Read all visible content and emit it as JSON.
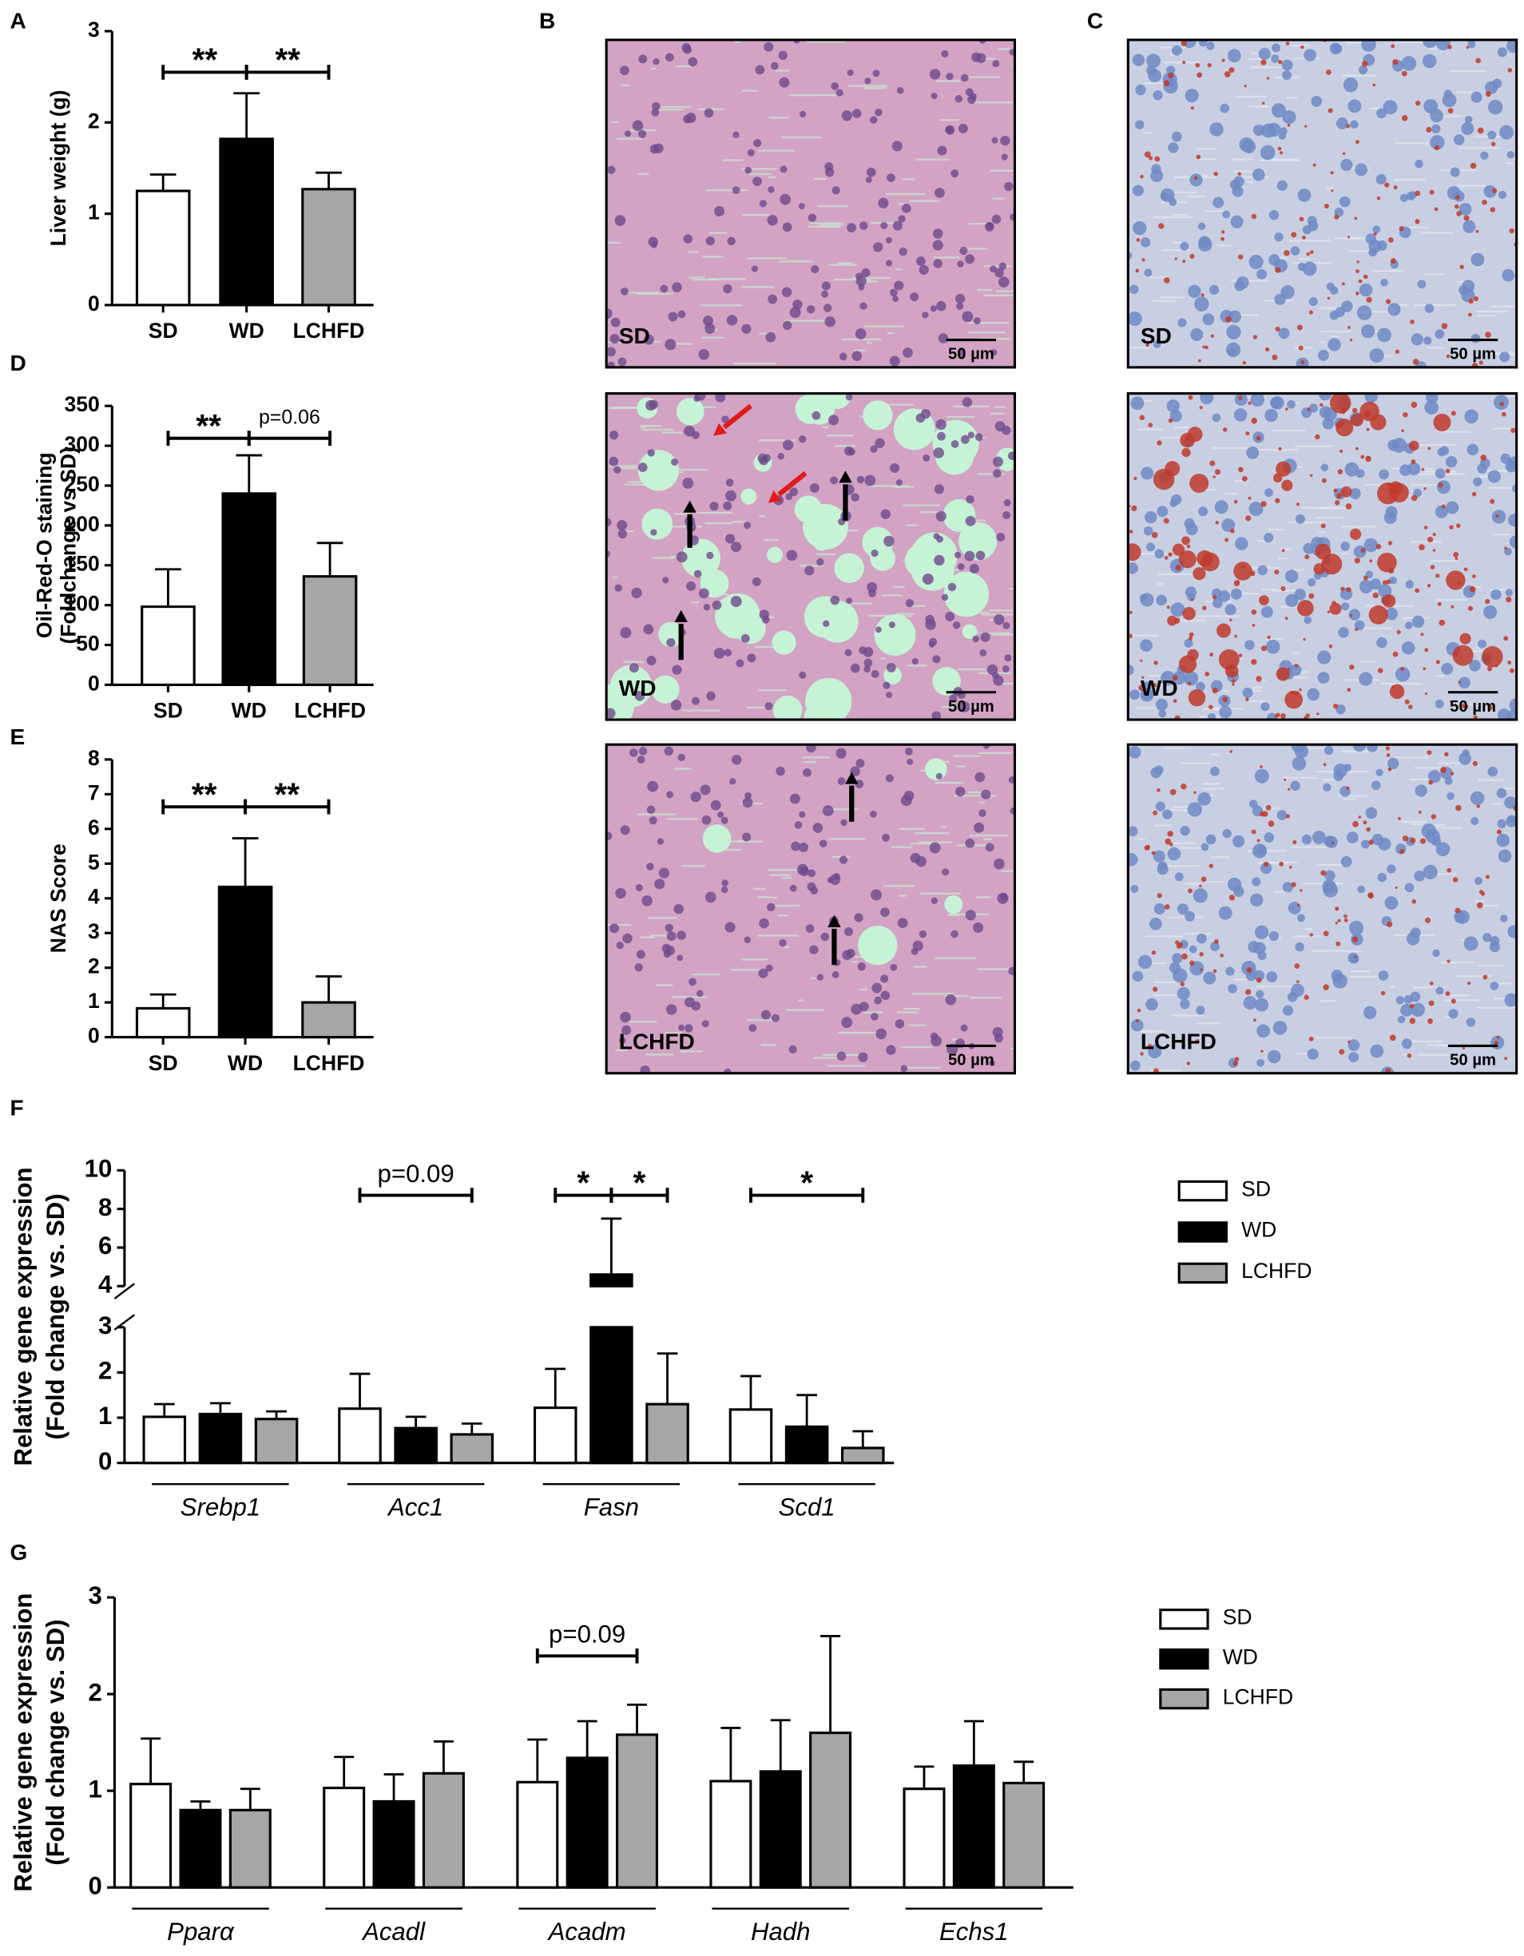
{
  "chart_data": [
    {
      "type": "bar",
      "panel": "A",
      "ylabel": [
        "Liver weight (g)"
      ],
      "categories": [
        "SD",
        "WD",
        "LCHFD"
      ],
      "values": [
        1.25,
        1.82,
        1.27
      ],
      "errors": [
        0.18,
        0.5,
        0.18
      ],
      "colors": [
        "#ffffff",
        "#000000",
        "#a6a6a6"
      ],
      "ylim": [
        0,
        3
      ],
      "yticks": [
        0,
        1,
        2,
        3
      ],
      "annotations": [
        {
          "label": "**",
          "between": [
            "SD",
            "WD"
          ]
        },
        {
          "label": "**",
          "between": [
            "WD",
            "LCHFD"
          ]
        }
      ]
    },
    {
      "type": "bar",
      "panel": "D",
      "ylabel": [
        "Oil-Red-O staining",
        "(Foldchange vs SD)"
      ],
      "categories": [
        "SD",
        "WD",
        "LCHFD"
      ],
      "values": [
        98,
        240,
        136
      ],
      "errors": [
        47,
        48,
        42
      ],
      "colors": [
        "#ffffff",
        "#000000",
        "#a6a6a6"
      ],
      "ylim": [
        0,
        350
      ],
      "yticks": [
        0,
        50,
        100,
        150,
        200,
        250,
        300,
        350
      ],
      "annotations": [
        {
          "label": "**",
          "between": [
            "SD",
            "WD"
          ]
        },
        {
          "label": "p=0.06",
          "between": [
            "WD",
            "LCHFD"
          ]
        }
      ]
    },
    {
      "type": "bar",
      "panel": "E",
      "ylabel": [
        "NAS Score"
      ],
      "categories": [
        "SD",
        "WD",
        "LCHFD"
      ],
      "values": [
        0.83,
        4.33,
        1.0
      ],
      "errors": [
        0.4,
        1.4,
        0.75
      ],
      "colors": [
        "#ffffff",
        "#000000",
        "#a6a6a6"
      ],
      "ylim": [
        0,
        8
      ],
      "yticks": [
        0,
        1,
        2,
        3,
        4,
        5,
        6,
        7,
        8
      ],
      "annotations": [
        {
          "label": "**",
          "between": [
            "SD",
            "WD"
          ]
        },
        {
          "label": "**",
          "between": [
            "WD",
            "LCHFD"
          ]
        }
      ]
    },
    {
      "type": "bar",
      "panel": "F",
      "ylabel": [
        "Relative gene expression",
        "(Fold change vs. SD)"
      ],
      "categories": [
        "Srebp1",
        "Acc1",
        "Fasn",
        "Scd1"
      ],
      "series": [
        {
          "name": "SD",
          "color": "#ffffff",
          "values": [
            1.02,
            1.2,
            1.22,
            1.18
          ],
          "errors": [
            0.28,
            0.77,
            0.86,
            0.74
          ]
        },
        {
          "name": "WD",
          "color": "#000000",
          "values": [
            1.08,
            0.77,
            4.6,
            0.8
          ],
          "errors": [
            0.24,
            0.25,
            2.9,
            0.7
          ]
        },
        {
          "name": "LCHFD",
          "color": "#a6a6a6",
          "values": [
            0.97,
            0.63,
            1.3,
            0.33
          ],
          "errors": [
            0.17,
            0.24,
            1.12,
            0.37
          ]
        }
      ],
      "ylim": [
        0,
        10
      ],
      "ybreak": [
        3,
        4
      ],
      "yticks": [
        0,
        1,
        2,
        3,
        4,
        6,
        8,
        10
      ],
      "legend": "right",
      "annotations": [
        {
          "label": "p=0.09",
          "category": "Acc1",
          "between": [
            "SD",
            "LCHFD"
          ]
        },
        {
          "label": "*",
          "category": "Fasn",
          "between": [
            "SD",
            "WD"
          ]
        },
        {
          "label": "*",
          "category": "Fasn",
          "between": [
            "WD",
            "LCHFD"
          ]
        },
        {
          "label": "*",
          "category": "Scd1",
          "between": [
            "SD",
            "LCHFD"
          ]
        }
      ]
    },
    {
      "type": "bar",
      "panel": "G",
      "ylabel": [
        "Relative gene expression",
        "(Fold change vs. SD)"
      ],
      "categories": [
        "Pparα",
        "Acadl",
        "Acadm",
        "Hadh",
        "Echs1"
      ],
      "series": [
        {
          "name": "SD",
          "color": "#ffffff",
          "values": [
            1.07,
            1.03,
            1.09,
            1.1,
            1.02
          ],
          "errors": [
            0.47,
            0.32,
            0.44,
            0.55,
            0.23
          ]
        },
        {
          "name": "WD",
          "color": "#000000",
          "values": [
            0.8,
            0.89,
            1.34,
            1.2,
            1.26
          ],
          "errors": [
            0.09,
            0.28,
            0.38,
            0.53,
            0.46
          ]
        },
        {
          "name": "LCHFD",
          "color": "#a6a6a6",
          "values": [
            0.8,
            1.18,
            1.58,
            1.6,
            1.08
          ],
          "errors": [
            0.22,
            0.33,
            0.31,
            1.0,
            0.22
          ]
        }
      ],
      "ylim": [
        0,
        3
      ],
      "yticks": [
        0,
        1,
        2,
        3
      ],
      "legend": "right",
      "annotations": [
        {
          "label": "p=0.09",
          "category": "Acadm",
          "between": [
            "SD",
            "LCHFD"
          ]
        }
      ]
    }
  ],
  "micrographs": [
    {
      "panel": "B",
      "stain": "H&E",
      "labels": [
        "SD",
        "WD",
        "LCHFD"
      ],
      "scale": "50 µm"
    },
    {
      "panel": "C",
      "stain": "Oil-Red-O",
      "labels": [
        "SD",
        "WD",
        "LCHFD"
      ],
      "scale": "50 µm"
    }
  ]
}
